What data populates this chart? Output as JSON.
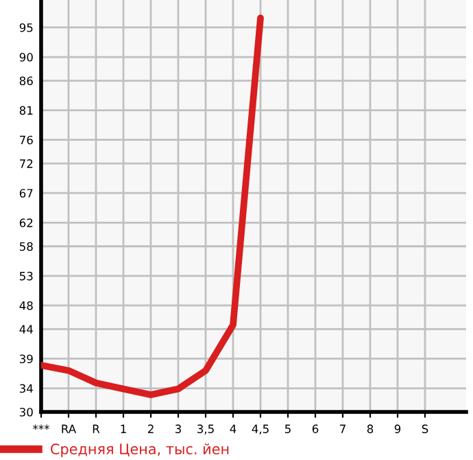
{
  "chart_data": {
    "type": "line",
    "categories": [
      "***",
      "RA",
      "R",
      "1",
      "2",
      "3",
      "3,5",
      "4",
      "4,5",
      "5",
      "6",
      "7",
      "8",
      "9",
      "S"
    ],
    "series": [
      {
        "name": "Средняя Цена, тыс. йен",
        "color": "#d81e1e",
        "values": [
          37.9,
          37.0,
          34.9,
          33.9,
          32.9,
          33.9,
          37.0,
          44.7,
          96.6,
          null,
          null,
          null,
          null,
          null,
          null
        ]
      }
    ],
    "ylim": [
      30,
      99.64
    ],
    "yticks": [
      30,
      34,
      39,
      44,
      48,
      53,
      58,
      62,
      67,
      72,
      76,
      81,
      86,
      90,
      95
    ],
    "grid": true,
    "legend": "bottom",
    "marker": "none",
    "line_style": "solid"
  }
}
